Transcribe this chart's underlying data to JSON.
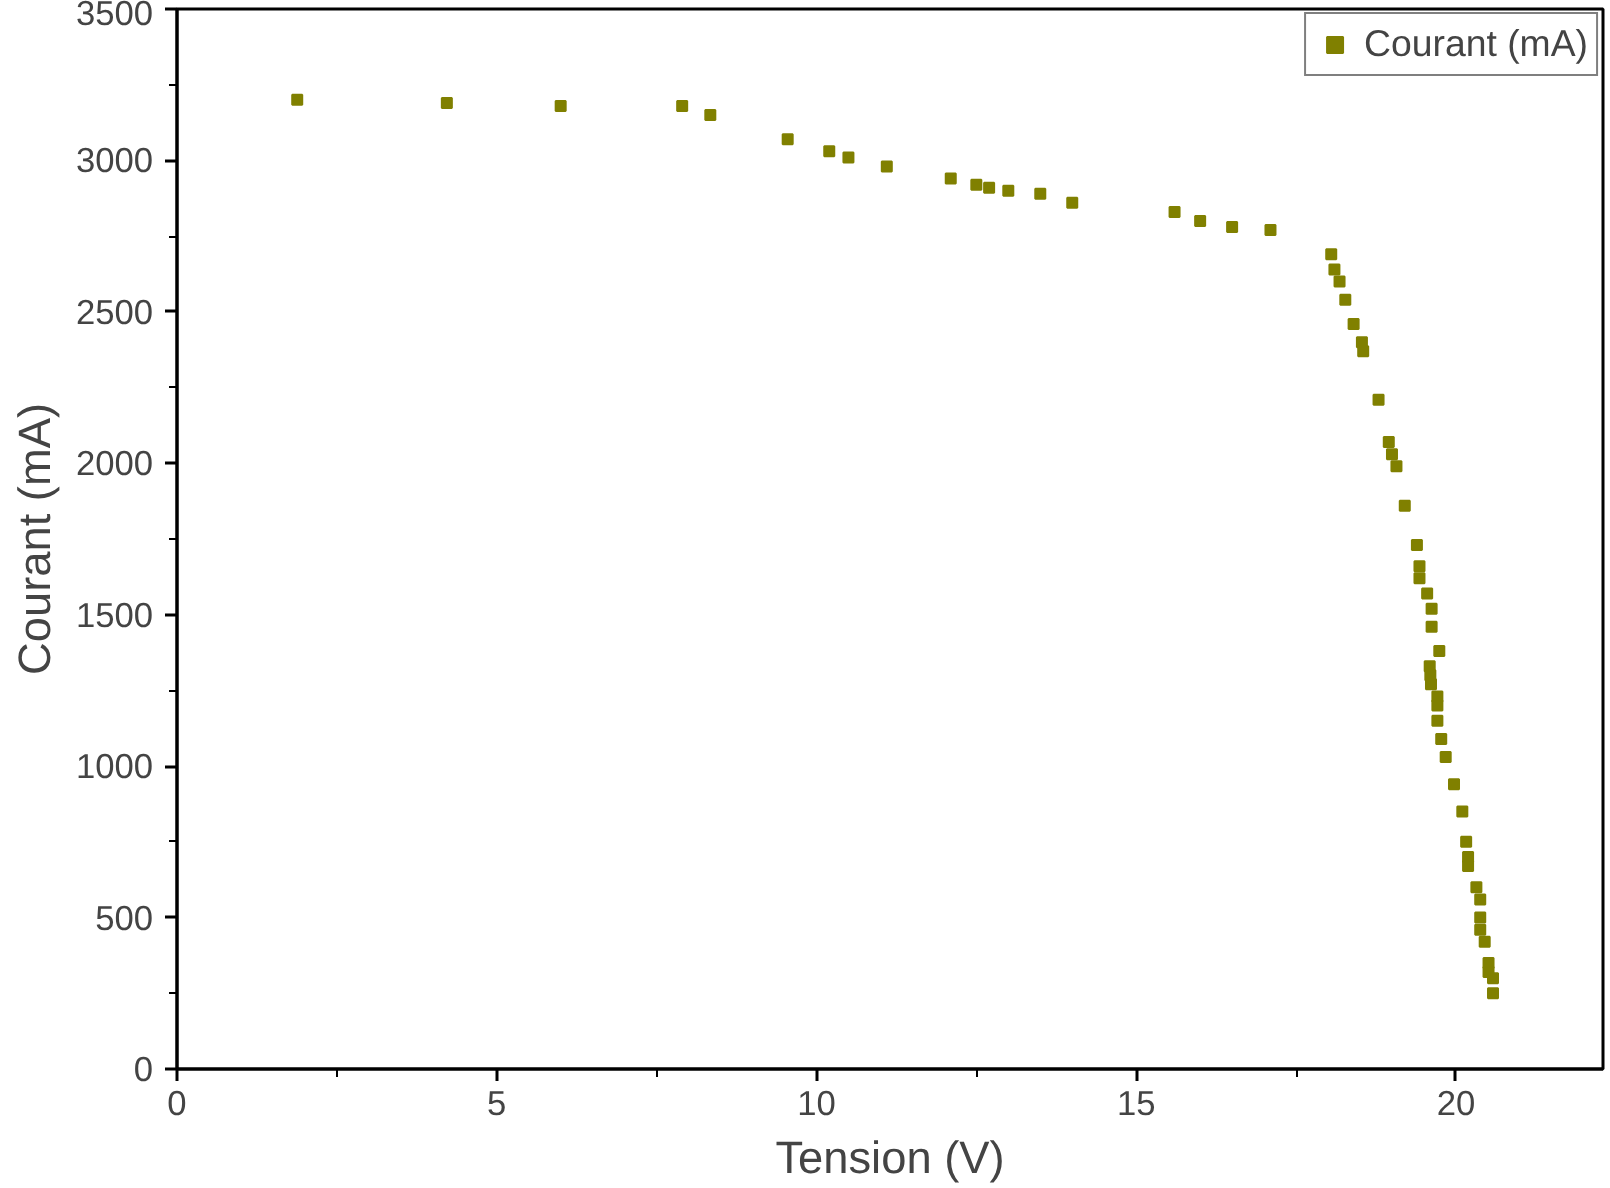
{
  "chart_data": {
    "type": "scatter",
    "xlabel": "Tension (V)",
    "ylabel": "Courant (mA)",
    "xlim": [
      0,
      22.3
    ],
    "ylim": [
      0,
      3500
    ],
    "xticks": [
      0,
      5,
      10,
      15,
      20
    ],
    "yticks": [
      0,
      500,
      1000,
      1500,
      2000,
      2500,
      3000,
      3500
    ],
    "grid": false,
    "legend": "top right",
    "marker": "square",
    "series": [
      {
        "name": "Courant (mA)",
        "color": "#808000",
        "x": [
          1.88,
          4.22,
          6.0,
          7.9,
          8.34,
          9.55,
          10.2,
          10.5,
          11.1,
          12.1,
          12.5,
          12.7,
          13.0,
          13.5,
          14.0,
          15.6,
          16.0,
          16.5,
          17.1,
          18.05,
          18.1,
          18.18,
          18.27,
          18.4,
          18.53,
          18.55,
          18.79,
          18.95,
          19.0,
          19.07,
          19.2,
          19.39,
          19.43,
          19.43,
          19.55,
          19.62,
          19.62,
          19.74,
          19.59,
          19.6,
          19.61,
          19.71,
          19.71,
          19.71,
          19.77,
          19.84,
          19.97,
          20.1,
          20.16,
          20.19,
          20.19,
          20.32,
          20.38,
          20.38,
          20.38,
          20.45,
          20.51,
          20.51,
          20.58,
          20.58
        ],
        "values": [
          3200,
          3190,
          3180,
          3180,
          3150,
          3070,
          3030,
          3010,
          2980,
          2940,
          2920,
          2910,
          2900,
          2890,
          2860,
          2830,
          2800,
          2780,
          2770,
          2690,
          2640,
          2600,
          2540,
          2460,
          2400,
          2370,
          2210,
          2070,
          2030,
          1990,
          1860,
          1730,
          1660,
          1620,
          1570,
          1520,
          1460,
          1380,
          1330,
          1300,
          1270,
          1230,
          1200,
          1150,
          1090,
          1030,
          940,
          850,
          750,
          700,
          670,
          600,
          560,
          500,
          460,
          420,
          350,
          320,
          300,
          250
        ]
      }
    ]
  }
}
